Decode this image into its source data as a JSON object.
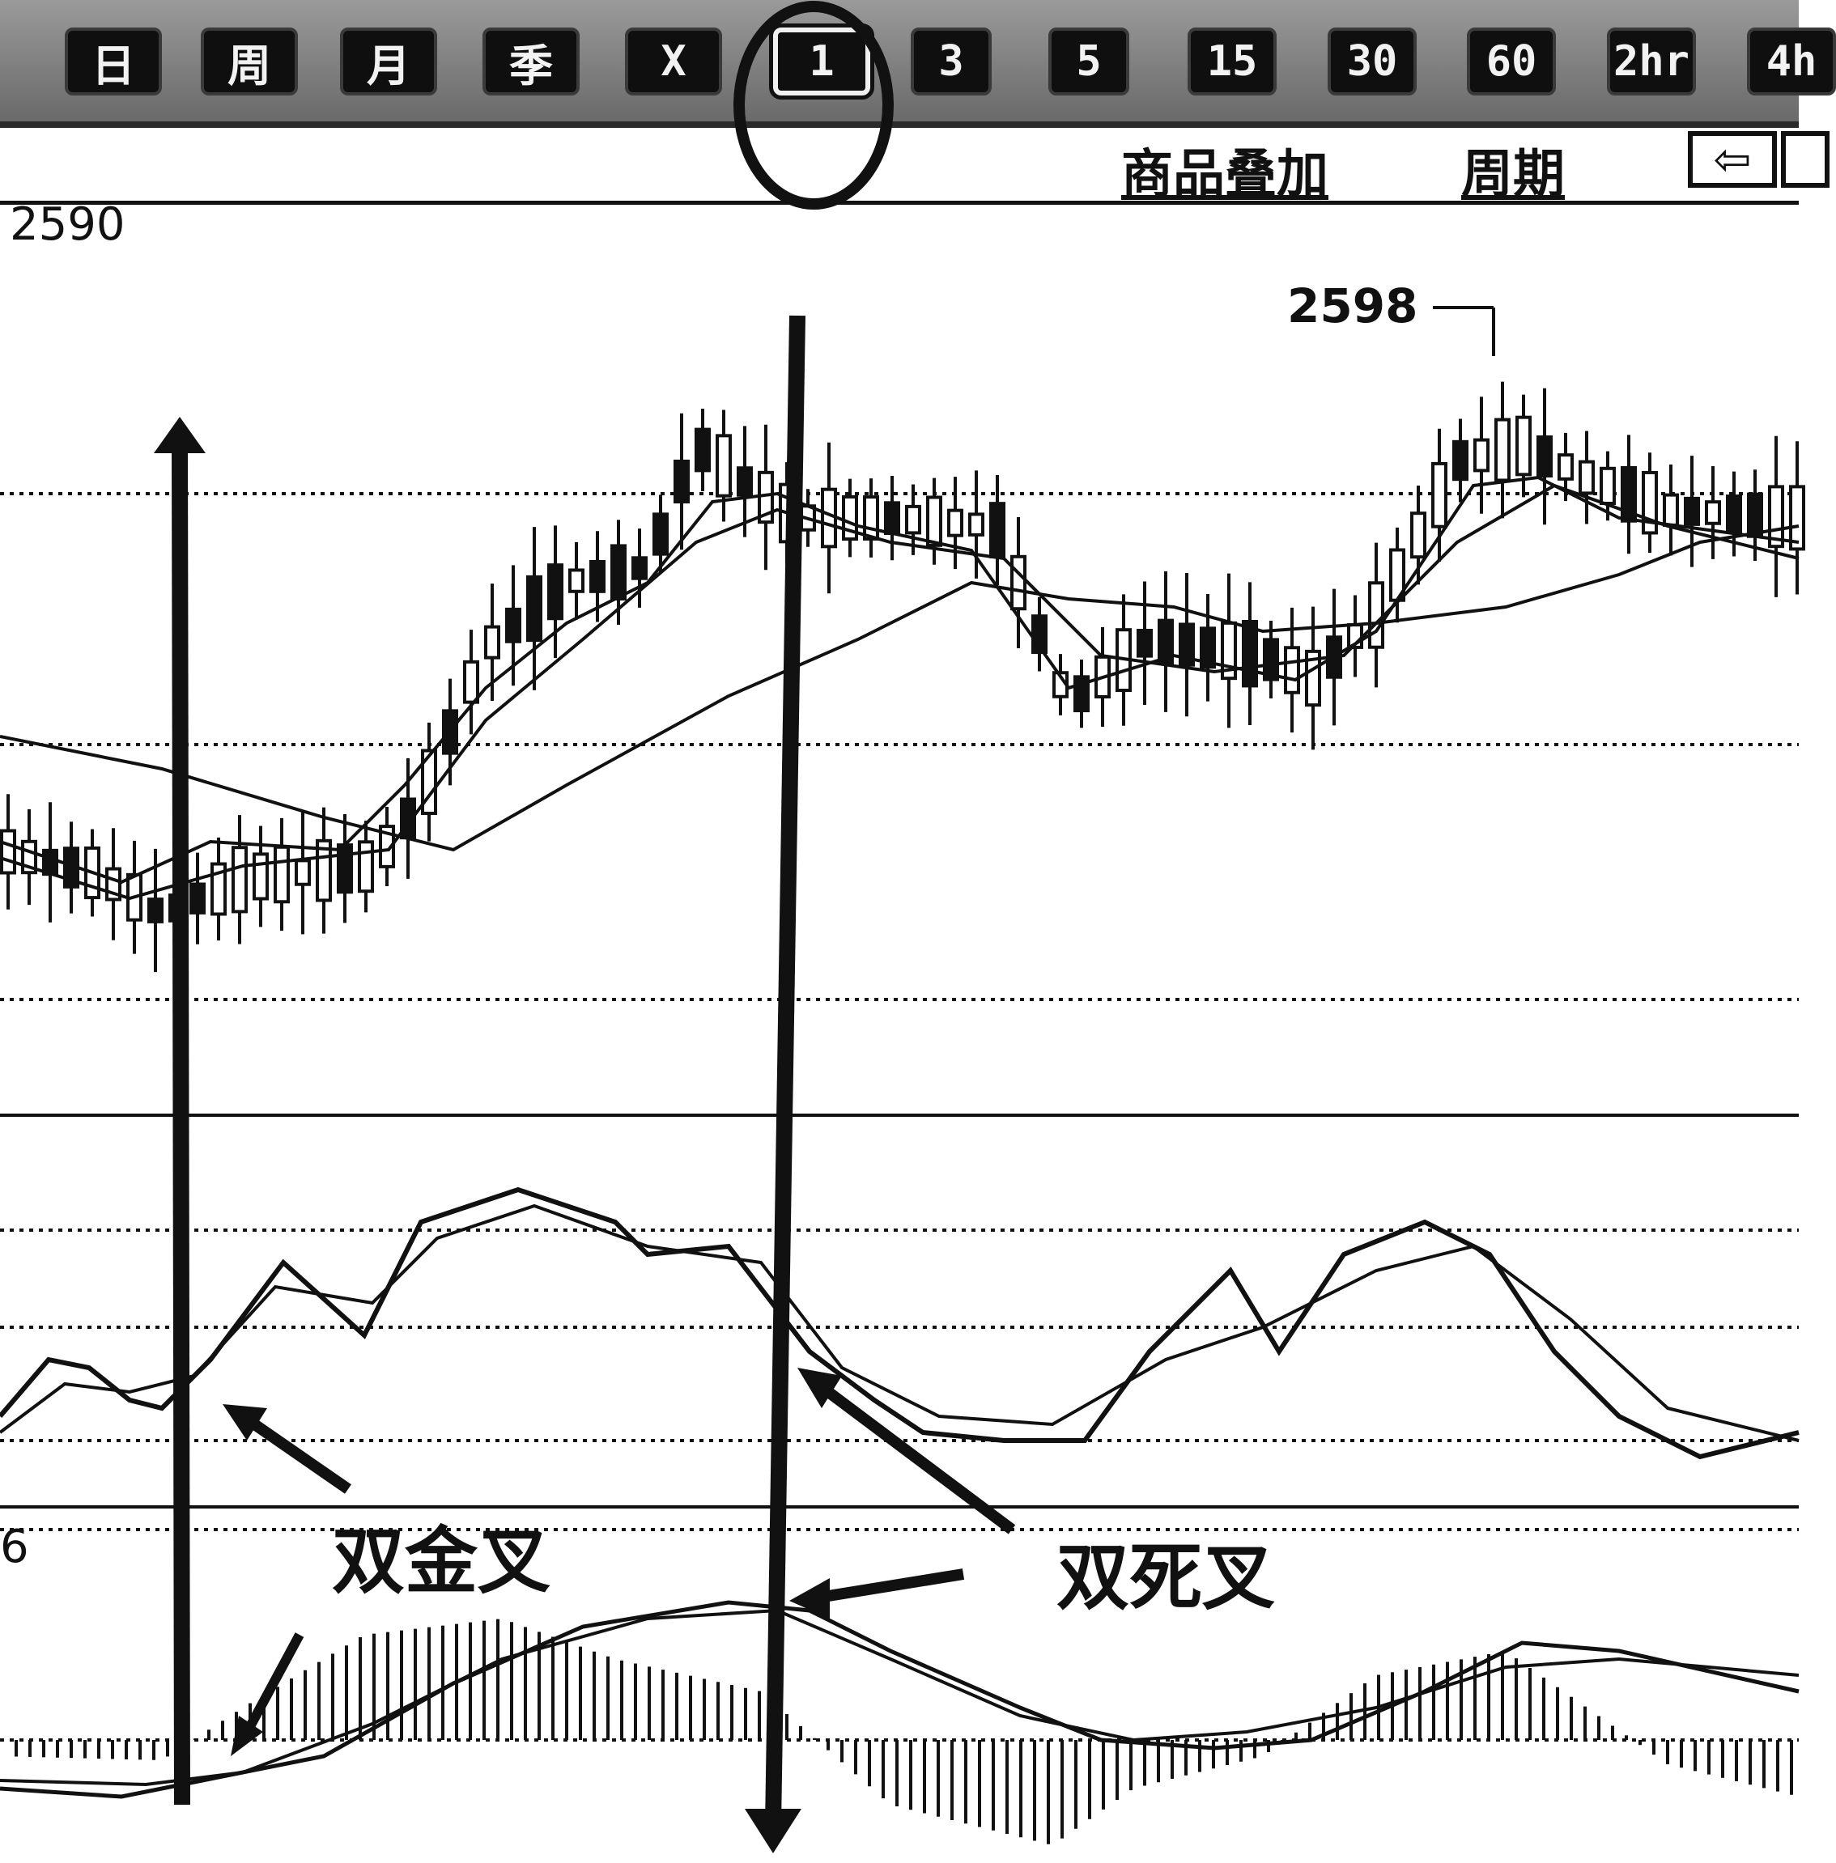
{
  "toolbar": {
    "buttons": [
      "日",
      "周",
      "月",
      "季",
      "X",
      "1",
      "3",
      "5",
      "15",
      "30",
      "60",
      "2hr",
      "4h"
    ],
    "selected": "1"
  },
  "subbar": {
    "links": [
      "商品叠加",
      "周期"
    ],
    "nav_icons": [
      "back-arrow-icon",
      "box-icon"
    ]
  },
  "chart_data": {
    "type": "candlestick",
    "panels": [
      "price",
      "KDJ",
      "MACD"
    ],
    "price_axis_label": "2590",
    "annotations": {
      "high_label": "2598",
      "golden_cross": "双金叉",
      "death_cross": "双死叉"
    },
    "macd_axis_label": "6",
    "grid": true
  },
  "colors": {
    "ink": "#111111",
    "toolbar": "#7d7d7d",
    "button": "#0f0f0f"
  }
}
